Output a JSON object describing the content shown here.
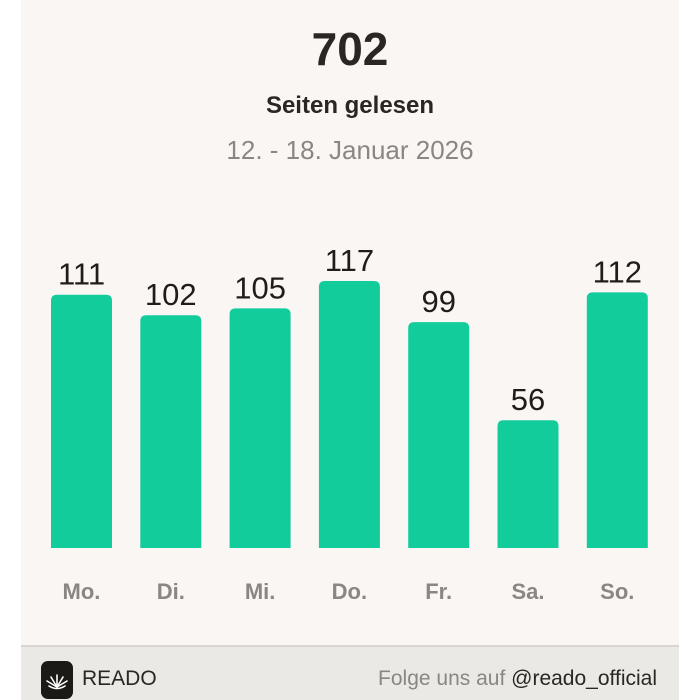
{
  "header": {
    "total": "702",
    "subtitle": "Seiten gelesen",
    "date_range": "12. - 18. Januar 2026"
  },
  "chart_data": {
    "type": "bar",
    "categories": [
      "Mo.",
      "Di.",
      "Mi.",
      "Do.",
      "Fr.",
      "Sa.",
      "So."
    ],
    "values": [
      111,
      102,
      105,
      117,
      99,
      56,
      112
    ],
    "title": "",
    "xlabel": "",
    "ylabel": "",
    "ylim": [
      0,
      117
    ],
    "grid": false,
    "bar_color": "#13cc9c"
  },
  "footer": {
    "brand": "READO",
    "follow_text": "Folge uns auf",
    "handle": "@reado_official"
  }
}
